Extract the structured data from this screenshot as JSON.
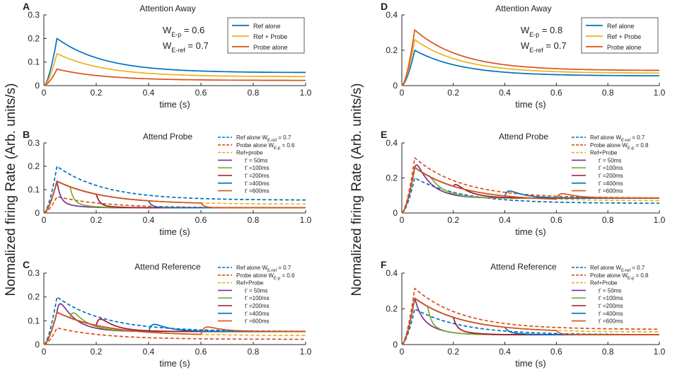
{
  "figure": {
    "ylabel_left": "Normalized firing Rate (Arb. units/s)",
    "ylabel_right": "Normalized firing Rate (Arb. units/s)"
  },
  "colors": {
    "blue": "#0072BD",
    "orange": "#EDB120",
    "red": "#D95319",
    "purple": "#7E2F8E",
    "green": "#77AC30",
    "darkred": "#A2142F"
  },
  "chart_data": [
    {
      "id": "A",
      "letter": "A",
      "type": "line",
      "title": "Attention Away",
      "xlabel": "time (s)",
      "xlim": [
        0,
        1
      ],
      "ylim": [
        0,
        0.3
      ],
      "xticks": [
        0,
        0.2,
        0.4,
        0.6,
        0.8,
        1.0
      ],
      "xticklabels": [
        "0",
        "0.2",
        "0.4",
        "0.6",
        "0.8",
        "1.0"
      ],
      "yticks": [
        0,
        0.1,
        0.2,
        0.3
      ],
      "yticklabels": [
        "0",
        "0.1",
        "0.2",
        "0.3"
      ],
      "weights": [
        "W_{E-p} = 0.6",
        "W_{E-ref} = 0.7"
      ],
      "legend_style": "boxed",
      "series": [
        {
          "name": "Ref alone",
          "color": "#0072BD",
          "dashed": false,
          "peak": 0.2,
          "steady": 0.055,
          "tauDecay": 0.18
        },
        {
          "name": "Ref + Probe",
          "color": "#EDB120",
          "dashed": false,
          "peak": 0.136,
          "steady": 0.038,
          "tauDecay": 0.18
        },
        {
          "name": "Probe alone",
          "color": "#D95319",
          "dashed": false,
          "peak": 0.07,
          "steady": 0.022,
          "tauDecay": 0.18
        }
      ]
    },
    {
      "id": "B",
      "letter": "B",
      "type": "line",
      "title": "Attend Probe",
      "xlabel": "time (s)",
      "xlim": [
        0,
        1
      ],
      "ylim": [
        0,
        0.3
      ],
      "xticks": [
        0,
        0.2,
        0.4,
        0.6,
        0.8,
        1.0
      ],
      "xticklabels": [
        "0",
        "0.2",
        "0.4",
        "0.6",
        "0.8",
        "1.0"
      ],
      "yticks": [
        0,
        0.1,
        0.2,
        0.3
      ],
      "yticklabels": [
        "0",
        "0.1",
        "0.2",
        "0.3"
      ],
      "legend_style": "plain",
      "series": [
        {
          "name": "Ref alone W_{E-ref} = 0.7",
          "color": "#0072BD",
          "dashed": true,
          "peak": 0.2,
          "steady": 0.055,
          "tauDecay": 0.18
        },
        {
          "name": "Probe alone W_{E-p} = 0.6",
          "color": "#D95319",
          "dashed": true,
          "peak": 0.07,
          "steady": 0.022,
          "tauDecay": 0.18
        },
        {
          "name": "Ref+probe",
          "color": "#EDB120",
          "dashed": true,
          "peak": 0.136,
          "steady": 0.038,
          "tauDecay": 0.18
        },
        {
          "name": "t' = 50ms",
          "color": "#7E2F8E",
          "dashed": false,
          "t_switch": 0.05,
          "pre_peak": 0.136,
          "pre_steady": 0.038,
          "post_level": 0.05,
          "post_steady": 0.022,
          "tauDecay": 0.18
        },
        {
          "name": "t' =100ms",
          "color": "#77AC30",
          "dashed": false,
          "t_switch": 0.1,
          "pre_peak": 0.136,
          "pre_steady": 0.038,
          "post_level": 0.048,
          "post_steady": 0.022,
          "tauDecay": 0.18
        },
        {
          "name": "t' =200ms",
          "color": "#A2142F",
          "dashed": false,
          "t_switch": 0.2,
          "pre_peak": 0.136,
          "pre_steady": 0.038,
          "post_level": 0.035,
          "post_steady": 0.022,
          "tauDecay": 0.18
        },
        {
          "name": "t' =400ms",
          "color": "#0072BD",
          "dashed": false,
          "t_switch": 0.4,
          "pre_peak": 0.136,
          "pre_steady": 0.038,
          "post_level": 0.025,
          "post_steady": 0.022,
          "tauDecay": 0.18
        },
        {
          "name": "t' =600ms",
          "color": "#D95319",
          "dashed": false,
          "t_switch": 0.6,
          "pre_peak": 0.136,
          "pre_steady": 0.038,
          "post_level": 0.024,
          "post_steady": 0.022,
          "tauDecay": 0.18
        }
      ]
    },
    {
      "id": "C",
      "letter": "C",
      "type": "line",
      "title": "Attend Reference",
      "xlabel": "time (s)",
      "xlim": [
        0,
        1
      ],
      "ylim": [
        0,
        0.3
      ],
      "xticks": [
        0,
        0.2,
        0.4,
        0.6,
        0.8,
        1.0
      ],
      "xticklabels": [
        "0",
        "0.2",
        "0.4",
        "0.6",
        "0.8",
        "1.0"
      ],
      "yticks": [
        0,
        0.1,
        0.2,
        0.3
      ],
      "yticklabels": [
        "0",
        "0.1",
        "0.2",
        "0.3"
      ],
      "legend_style": "plain",
      "series": [
        {
          "name": "Ref alone W_{E-ref} = 0.7",
          "color": "#0072BD",
          "dashed": true,
          "peak": 0.2,
          "steady": 0.055,
          "tauDecay": 0.18
        },
        {
          "name": "Probe alone W_{E-p} = 0.6",
          "color": "#D95319",
          "dashed": true,
          "peak": 0.07,
          "steady": 0.022,
          "tauDecay": 0.18
        },
        {
          "name": "Ref+Probe",
          "color": "#EDB120",
          "dashed": true,
          "peak": 0.136,
          "steady": 0.038,
          "tauDecay": 0.18
        },
        {
          "name": "t' = 50ms",
          "color": "#7E2F8E",
          "dashed": false,
          "t_switch": 0.05,
          "pre_peak": 0.136,
          "pre_steady": 0.038,
          "post_level": 0.222,
          "post_steady": 0.055,
          "tauDecay": 0.18
        },
        {
          "name": "t' =100ms",
          "color": "#77AC30",
          "dashed": false,
          "t_switch": 0.1,
          "pre_peak": 0.136,
          "pre_steady": 0.038,
          "post_level": 0.165,
          "post_steady": 0.055,
          "tauDecay": 0.18
        },
        {
          "name": "t' =200ms",
          "color": "#A2142F",
          "dashed": false,
          "t_switch": 0.2,
          "pre_peak": 0.136,
          "pre_steady": 0.038,
          "post_level": 0.135,
          "post_steady": 0.055,
          "tauDecay": 0.18
        },
        {
          "name": "t' =400ms",
          "color": "#0072BD",
          "dashed": false,
          "t_switch": 0.4,
          "pre_peak": 0.136,
          "pre_steady": 0.038,
          "post_level": 0.107,
          "post_steady": 0.055,
          "tauDecay": 0.18
        },
        {
          "name": "t' =600ms",
          "color": "#D95319",
          "dashed": false,
          "t_switch": 0.6,
          "pre_peak": 0.136,
          "pre_steady": 0.038,
          "post_level": 0.09,
          "post_steady": 0.055,
          "tauDecay": 0.18
        }
      ]
    },
    {
      "id": "D",
      "letter": "D",
      "type": "line",
      "title": "Attention Away",
      "xlabel": "time (s)",
      "xlim": [
        0,
        1
      ],
      "ylim": [
        0,
        0.4
      ],
      "xticks": [
        0,
        0.2,
        0.4,
        0.6,
        0.8,
        1.0
      ],
      "xticklabels": [
        "0",
        "0.2",
        "0.4",
        "0.6",
        "0.8",
        "1.0"
      ],
      "yticks": [
        0,
        0.2,
        0.4
      ],
      "yticklabels": [
        "0",
        "0.2",
        "0.4"
      ],
      "weights": [
        "W_{E-p} = 0.8",
        "W_{E-ref} = 0.7"
      ],
      "legend_style": "boxed",
      "series": [
        {
          "name": "Ref alone",
          "color": "#0072BD",
          "dashed": false,
          "peak": 0.2,
          "steady": 0.055,
          "tauDecay": 0.18
        },
        {
          "name": "Ref + Probe",
          "color": "#EDB120",
          "dashed": false,
          "peak": 0.26,
          "steady": 0.07,
          "tauDecay": 0.18
        },
        {
          "name": "Probe alone",
          "color": "#D95319",
          "dashed": false,
          "peak": 0.315,
          "steady": 0.085,
          "tauDecay": 0.18
        }
      ]
    },
    {
      "id": "E",
      "letter": "E",
      "type": "line",
      "title": "Attend Probe",
      "xlabel": "time (s)",
      "xlim": [
        0,
        1
      ],
      "ylim": [
        0,
        0.4
      ],
      "xticks": [
        0,
        0.2,
        0.4,
        0.6,
        0.8,
        1.0
      ],
      "xticklabels": [
        "0",
        "0.2",
        "0.4",
        "0.6",
        "0.8",
        "1.0"
      ],
      "yticks": [
        0,
        0.2,
        0.4
      ],
      "yticklabels": [
        "0",
        "0.2",
        "0.4"
      ],
      "legend_style": "plain",
      "series": [
        {
          "name": "Ref alone W_{E-ref} = 0.7",
          "color": "#0072BD",
          "dashed": true,
          "peak": 0.2,
          "steady": 0.055,
          "tauDecay": 0.18
        },
        {
          "name": "Probe alone W_{E-p} = 0.8",
          "color": "#D95319",
          "dashed": true,
          "peak": 0.315,
          "steady": 0.085,
          "tauDecay": 0.18
        },
        {
          "name": "Ref+Probe",
          "color": "#EDB120",
          "dashed": true,
          "peak": 0.26,
          "steady": 0.07,
          "tauDecay": 0.18
        },
        {
          "name": "t' = 50ms",
          "color": "#7E2F8E",
          "dashed": false,
          "t_switch": 0.05,
          "pre_peak": 0.26,
          "pre_steady": 0.07,
          "post_level": 0.318,
          "post_steady": 0.085,
          "tauDecay": 0.18
        },
        {
          "name": "t' =100ms",
          "color": "#77AC30",
          "dashed": false,
          "t_switch": 0.1,
          "pre_peak": 0.26,
          "pre_steady": 0.07,
          "post_level": 0.222,
          "post_steady": 0.085,
          "tauDecay": 0.18
        },
        {
          "name": "t' =200ms",
          "color": "#A2142F",
          "dashed": false,
          "t_switch": 0.2,
          "pre_peak": 0.26,
          "pre_steady": 0.07,
          "post_level": 0.185,
          "post_steady": 0.085,
          "tauDecay": 0.18
        },
        {
          "name": "t' =400ms",
          "color": "#0072BD",
          "dashed": false,
          "t_switch": 0.4,
          "pre_peak": 0.26,
          "pre_steady": 0.07,
          "post_level": 0.15,
          "post_steady": 0.085,
          "tauDecay": 0.18
        },
        {
          "name": "t' =600ms",
          "color": "#D95319",
          "dashed": false,
          "t_switch": 0.6,
          "pre_peak": 0.26,
          "pre_steady": 0.07,
          "post_level": 0.13,
          "post_steady": 0.085,
          "tauDecay": 0.18
        }
      ]
    },
    {
      "id": "F",
      "letter": "F",
      "type": "line",
      "title": "Attend Reference",
      "xlabel": "time (s)",
      "xlim": [
        0,
        1
      ],
      "ylim": [
        0,
        0.4
      ],
      "xticks": [
        0,
        0.2,
        0.4,
        0.6,
        0.8,
        1.0
      ],
      "xticklabels": [
        "0",
        "0.2",
        "0.4",
        "0.6",
        "0.8",
        "1.0"
      ],
      "yticks": [
        0,
        0.2,
        0.4
      ],
      "yticklabels": [
        "0",
        "0.2",
        "0.4"
      ],
      "legend_style": "plain",
      "series": [
        {
          "name": "Ref alone W_{E-ref} = 0.7",
          "color": "#0072BD",
          "dashed": true,
          "peak": 0.2,
          "steady": 0.055,
          "tauDecay": 0.18
        },
        {
          "name": "Probe alone W_{E-p} = 0.8",
          "color": "#D95319",
          "dashed": true,
          "peak": 0.315,
          "steady": 0.085,
          "tauDecay": 0.18
        },
        {
          "name": "Ref+Probe",
          "color": "#EDB120",
          "dashed": true,
          "peak": 0.26,
          "steady": 0.07,
          "tauDecay": 0.18
        },
        {
          "name": "t' = 50ms",
          "color": "#7E2F8E",
          "dashed": false,
          "t_switch": 0.05,
          "pre_peak": 0.26,
          "pre_steady": 0.07,
          "post_level": 0.2,
          "post_steady": 0.055,
          "tauDecay": 0.18
        },
        {
          "name": "t' =100ms",
          "color": "#77AC30",
          "dashed": false,
          "t_switch": 0.1,
          "pre_peak": 0.26,
          "pre_steady": 0.07,
          "post_level": 0.12,
          "post_steady": 0.055,
          "tauDecay": 0.18
        },
        {
          "name": "t' =200ms",
          "color": "#A2142F",
          "dashed": false,
          "t_switch": 0.2,
          "pre_peak": 0.26,
          "pre_steady": 0.07,
          "post_level": 0.09,
          "post_steady": 0.055,
          "tauDecay": 0.18
        },
        {
          "name": "t' =400ms",
          "color": "#0072BD",
          "dashed": false,
          "t_switch": 0.4,
          "pre_peak": 0.26,
          "pre_steady": 0.07,
          "post_level": 0.07,
          "post_steady": 0.055,
          "tauDecay": 0.18
        },
        {
          "name": "t' =600ms",
          "color": "#D95319",
          "dashed": false,
          "t_switch": 0.6,
          "pre_peak": 0.26,
          "pre_steady": 0.07,
          "post_level": 0.058,
          "post_steady": 0.055,
          "tauDecay": 0.18
        }
      ]
    }
  ]
}
